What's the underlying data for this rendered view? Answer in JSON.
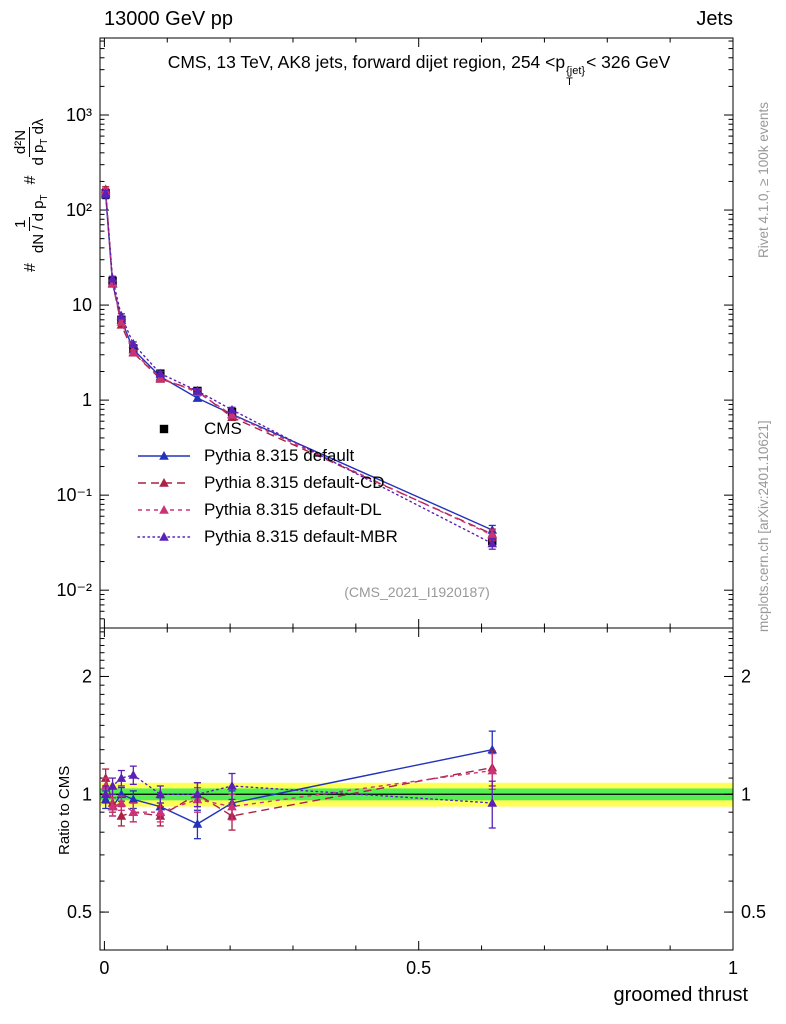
{
  "header": {
    "left": "13000 GeV pp",
    "right": "Jets"
  },
  "title": {
    "prefix": "CMS, 13 TeV, AK8 jets, forward dijet region, 254 <",
    "symbol": "p",
    "sup": "{jet}",
    "sub": "T",
    "suffix": "< 326 GeV"
  },
  "ylabel": {
    "hash1": "#",
    "frac1_num": "1",
    "frac1_den": "dN / d p",
    "frac1_den_sub": "T",
    "hash2": "#",
    "frac2_num": "d²N",
    "frac2_den_a": "d p",
    "frac2_den_sub": "T",
    "frac2_den_b": " dλ"
  },
  "ratio_ylabel": "Ratio to CMS",
  "xlabel": "groomed thrust",
  "watermark": "(CMS_2021_I1920187)",
  "credits": {
    "right_top": "Rivet 4.1.0, ≥ 100k events",
    "right_bottom": "mcplots.cern.ch [arXiv:2401.10621]"
  },
  "chart_data": [
    {
      "type": "line",
      "title": "CMS, 13 TeV, AK8 jets, forward dijet region, 254 < pT{jet} < 326 GeV",
      "xlabel": "groomed thrust",
      "ylabel": "# 1/(dN/dpT) d²N/(dpT dλ)",
      "xscale": "linear",
      "yscale": "log",
      "grid": false,
      "legend_position": "inside-left",
      "xlim": [
        -0.007,
        1.0
      ],
      "ylim": [
        0.004,
        6460
      ],
      "xminor": 0.1,
      "xticks": [
        {
          "v": 0,
          "label": "0"
        },
        {
          "v": 0.5,
          "label": "0.5"
        },
        {
          "v": 1,
          "label": "1"
        }
      ],
      "yticks": [
        {
          "v": 0.01,
          "label": "10⁻²"
        },
        {
          "v": 0.1,
          "label": "10⁻¹"
        },
        {
          "v": 1,
          "label": "1"
        },
        {
          "v": 10,
          "label": "10"
        },
        {
          "v": 100,
          "label": "10²"
        },
        {
          "v": 1000,
          "label": "10³"
        }
      ],
      "x": [
        0.002,
        0.013,
        0.027,
        0.046,
        0.089,
        0.148,
        0.203,
        0.617
      ],
      "series": [
        {
          "name": "CMS",
          "marker": "square",
          "color": "#000000",
          "line": "none",
          "values": [
            150,
            18,
            7,
            3.5,
            1.9,
            1.25,
            0.75,
            0.033
          ],
          "yerr": [
            18,
            1.6,
            0.6,
            0.3,
            0.16,
            0.1,
            0.07,
            0.004
          ]
        },
        {
          "name": "Pythia 8.315 default",
          "marker": "triangle",
          "color": "#2233bb",
          "line": "solid",
          "values": [
            145,
            16.8,
            7.0,
            3.4,
            1.77,
            1.05,
            0.71,
            0.043
          ],
          "yerr": [
            10,
            1.0,
            0.35,
            0.18,
            0.09,
            0.06,
            0.04,
            0.005
          ]
        },
        {
          "name": "Pythia 8.315 default-CD",
          "marker": "triangle",
          "color": "#aa2244",
          "line": "dashed",
          "values": [
            165,
            17.1,
            6.2,
            3.15,
            1.67,
            1.25,
            0.66,
            0.039
          ],
          "yerr": [
            11,
            1.0,
            0.35,
            0.17,
            0.09,
            0.07,
            0.04,
            0.005
          ]
        },
        {
          "name": "Pythia 8.315 default-DL",
          "marker": "triangle",
          "color": "#cc3377",
          "line": "dashed2",
          "values": [
            158,
            16.7,
            6.65,
            3.2,
            1.71,
            1.21,
            0.7,
            0.038
          ],
          "yerr": [
            11,
            1.0,
            0.35,
            0.17,
            0.09,
            0.07,
            0.04,
            0.005
          ]
        },
        {
          "name": "Pythia 8.315 default-MBR",
          "marker": "triangle",
          "color": "#5b21b6",
          "line": "dotted",
          "values": [
            150,
            19,
            7.7,
            3.9,
            1.9,
            1.25,
            0.79,
            0.031
          ],
          "yerr": [
            11,
            1.1,
            0.4,
            0.2,
            0.1,
            0.07,
            0.05,
            0.004
          ]
        }
      ]
    },
    {
      "type": "line",
      "title": "Ratio to CMS",
      "xscale": "linear",
      "yscale": "log",
      "grid": false,
      "xlim": [
        -0.007,
        1.0
      ],
      "ylim": [
        0.4,
        2.66
      ],
      "xminor": 0.1,
      "xticks": [
        {
          "v": 0,
          "label": "0"
        },
        {
          "v": 0.5,
          "label": "0.5"
        },
        {
          "v": 1,
          "label": "1"
        }
      ],
      "yticks": [
        {
          "v": 0.5,
          "label": "0.5"
        },
        {
          "v": 1,
          "label": "1"
        },
        {
          "v": 2,
          "label": "2"
        }
      ],
      "reference": 1,
      "bands": {
        "outer": {
          "lo": 0.93,
          "hi": 1.07,
          "color": "#ffff55"
        },
        "inner": {
          "lo": 0.965,
          "hi": 1.035,
          "color": "#55ee55"
        }
      },
      "x": [
        0.002,
        0.013,
        0.027,
        0.046,
        0.089,
        0.148,
        0.203,
        0.617
      ],
      "series": [
        {
          "name": "Pythia 8.315 default",
          "marker": "triangle",
          "color": "#2233bb",
          "line": "solid",
          "values": [
            0.97,
            0.93,
            1.0,
            0.97,
            0.93,
            0.84,
            0.95,
            1.3
          ],
          "yerr": [
            0.05,
            0.05,
            0.04,
            0.05,
            0.05,
            0.07,
            0.07,
            0.15
          ]
        },
        {
          "name": "Pythia 8.315 default-CD",
          "marker": "triangle",
          "color": "#aa2244",
          "line": "dashed",
          "values": [
            1.1,
            0.95,
            0.88,
            0.9,
            0.88,
            1.0,
            0.88,
            1.17
          ],
          "yerr": [
            0.06,
            0.05,
            0.05,
            0.05,
            0.05,
            0.07,
            0.07,
            0.12
          ]
        },
        {
          "name": "Pythia 8.315 default-DL",
          "marker": "triangle",
          "color": "#cc3377",
          "line": "dashed2",
          "values": [
            1.05,
            0.93,
            0.95,
            0.9,
            0.9,
            0.97,
            0.93,
            1.15
          ],
          "yerr": [
            0.05,
            0.05,
            0.04,
            0.05,
            0.05,
            0.07,
            0.07,
            0.12
          ]
        },
        {
          "name": "Pythia 8.315 default-MBR",
          "marker": "triangle",
          "color": "#5b21b6",
          "line": "dotted",
          "values": [
            1.0,
            1.05,
            1.1,
            1.12,
            1.0,
            1.0,
            1.05,
            0.95
          ],
          "yerr": [
            0.05,
            0.05,
            0.05,
            0.06,
            0.05,
            0.07,
            0.08,
            0.13
          ]
        }
      ]
    }
  ]
}
